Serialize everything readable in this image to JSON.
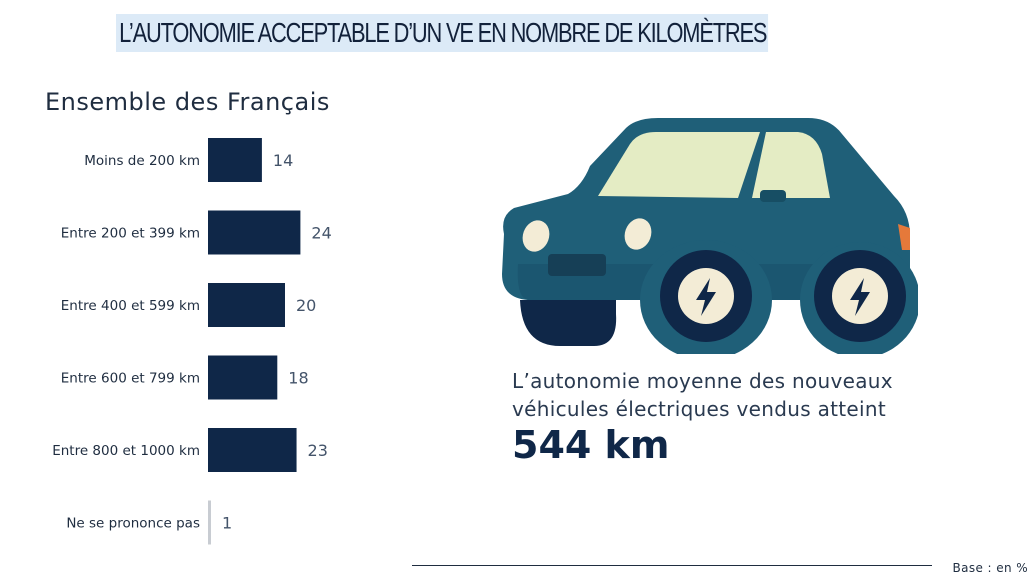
{
  "title": "L’AUTONOMIE ACCEPTABLE D’UN VE EN NOMBRE DE KILOMÈTRES",
  "subtitle": "Ensemble des Français",
  "chart_data": {
    "type": "bar",
    "orientation": "horizontal",
    "categories": [
      "Moins de 200 km",
      "Entre 200 et 399 km",
      "Entre 400 et 599 km",
      "Entre 600 et 799 km",
      "Entre 800 et 1000 km",
      "Ne se prononce pas"
    ],
    "values": [
      14,
      24,
      20,
      18,
      23,
      1
    ],
    "title": "Ensemble des Français",
    "xlabel": "",
    "ylabel": "",
    "xlim": [
      0,
      30
    ],
    "grid": false,
    "legend": "none",
    "colors": {
      "bar": "#0f2748",
      "bar_minor": "#c8ccd2",
      "label": "#1f2d40",
      "value": "#44546a"
    }
  },
  "stat": {
    "text": "L’autonomie moyenne des nouveaux véhicules électriques vendus atteint",
    "value": "544 km"
  },
  "footer": {
    "base_note": "Base : en %"
  },
  "icons": {
    "car": "electric-car-icon",
    "bolt": "lightning-bolt-icon"
  },
  "colors": {
    "title_highlight": "#dceaf7",
    "car_body": "#1f5f78",
    "car_window": "#e4ecc4",
    "car_light": "#f3ecd6",
    "car_orange": "#e5793a",
    "wheel": "#0f2748",
    "hub": "#f3ecd6"
  }
}
